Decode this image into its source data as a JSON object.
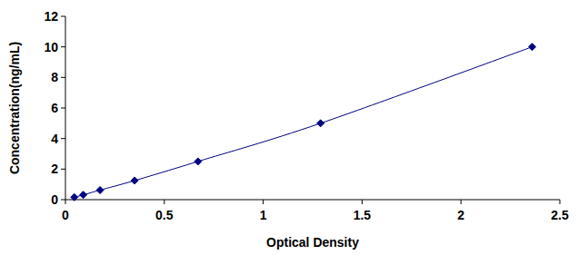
{
  "chart_data": {
    "type": "scatter",
    "x_label": "Optical Density",
    "y_label": "Concentration(ng/mL)",
    "x": [
      0.045,
      0.09,
      0.175,
      0.35,
      0.67,
      1.29,
      2.36
    ],
    "values": [
      0.156,
      0.312,
      0.625,
      1.25,
      2.5,
      5,
      10
    ],
    "color": "#000080",
    "marker": "diamond",
    "line_style": "solid",
    "xlim": [
      0,
      2.5
    ],
    "xticks": [
      0,
      0.5,
      1,
      1.5,
      2,
      2.5
    ],
    "ylim": [
      0,
      12
    ],
    "yticks": [
      0,
      2,
      4,
      6,
      8,
      10,
      12
    ],
    "grid": false
  }
}
